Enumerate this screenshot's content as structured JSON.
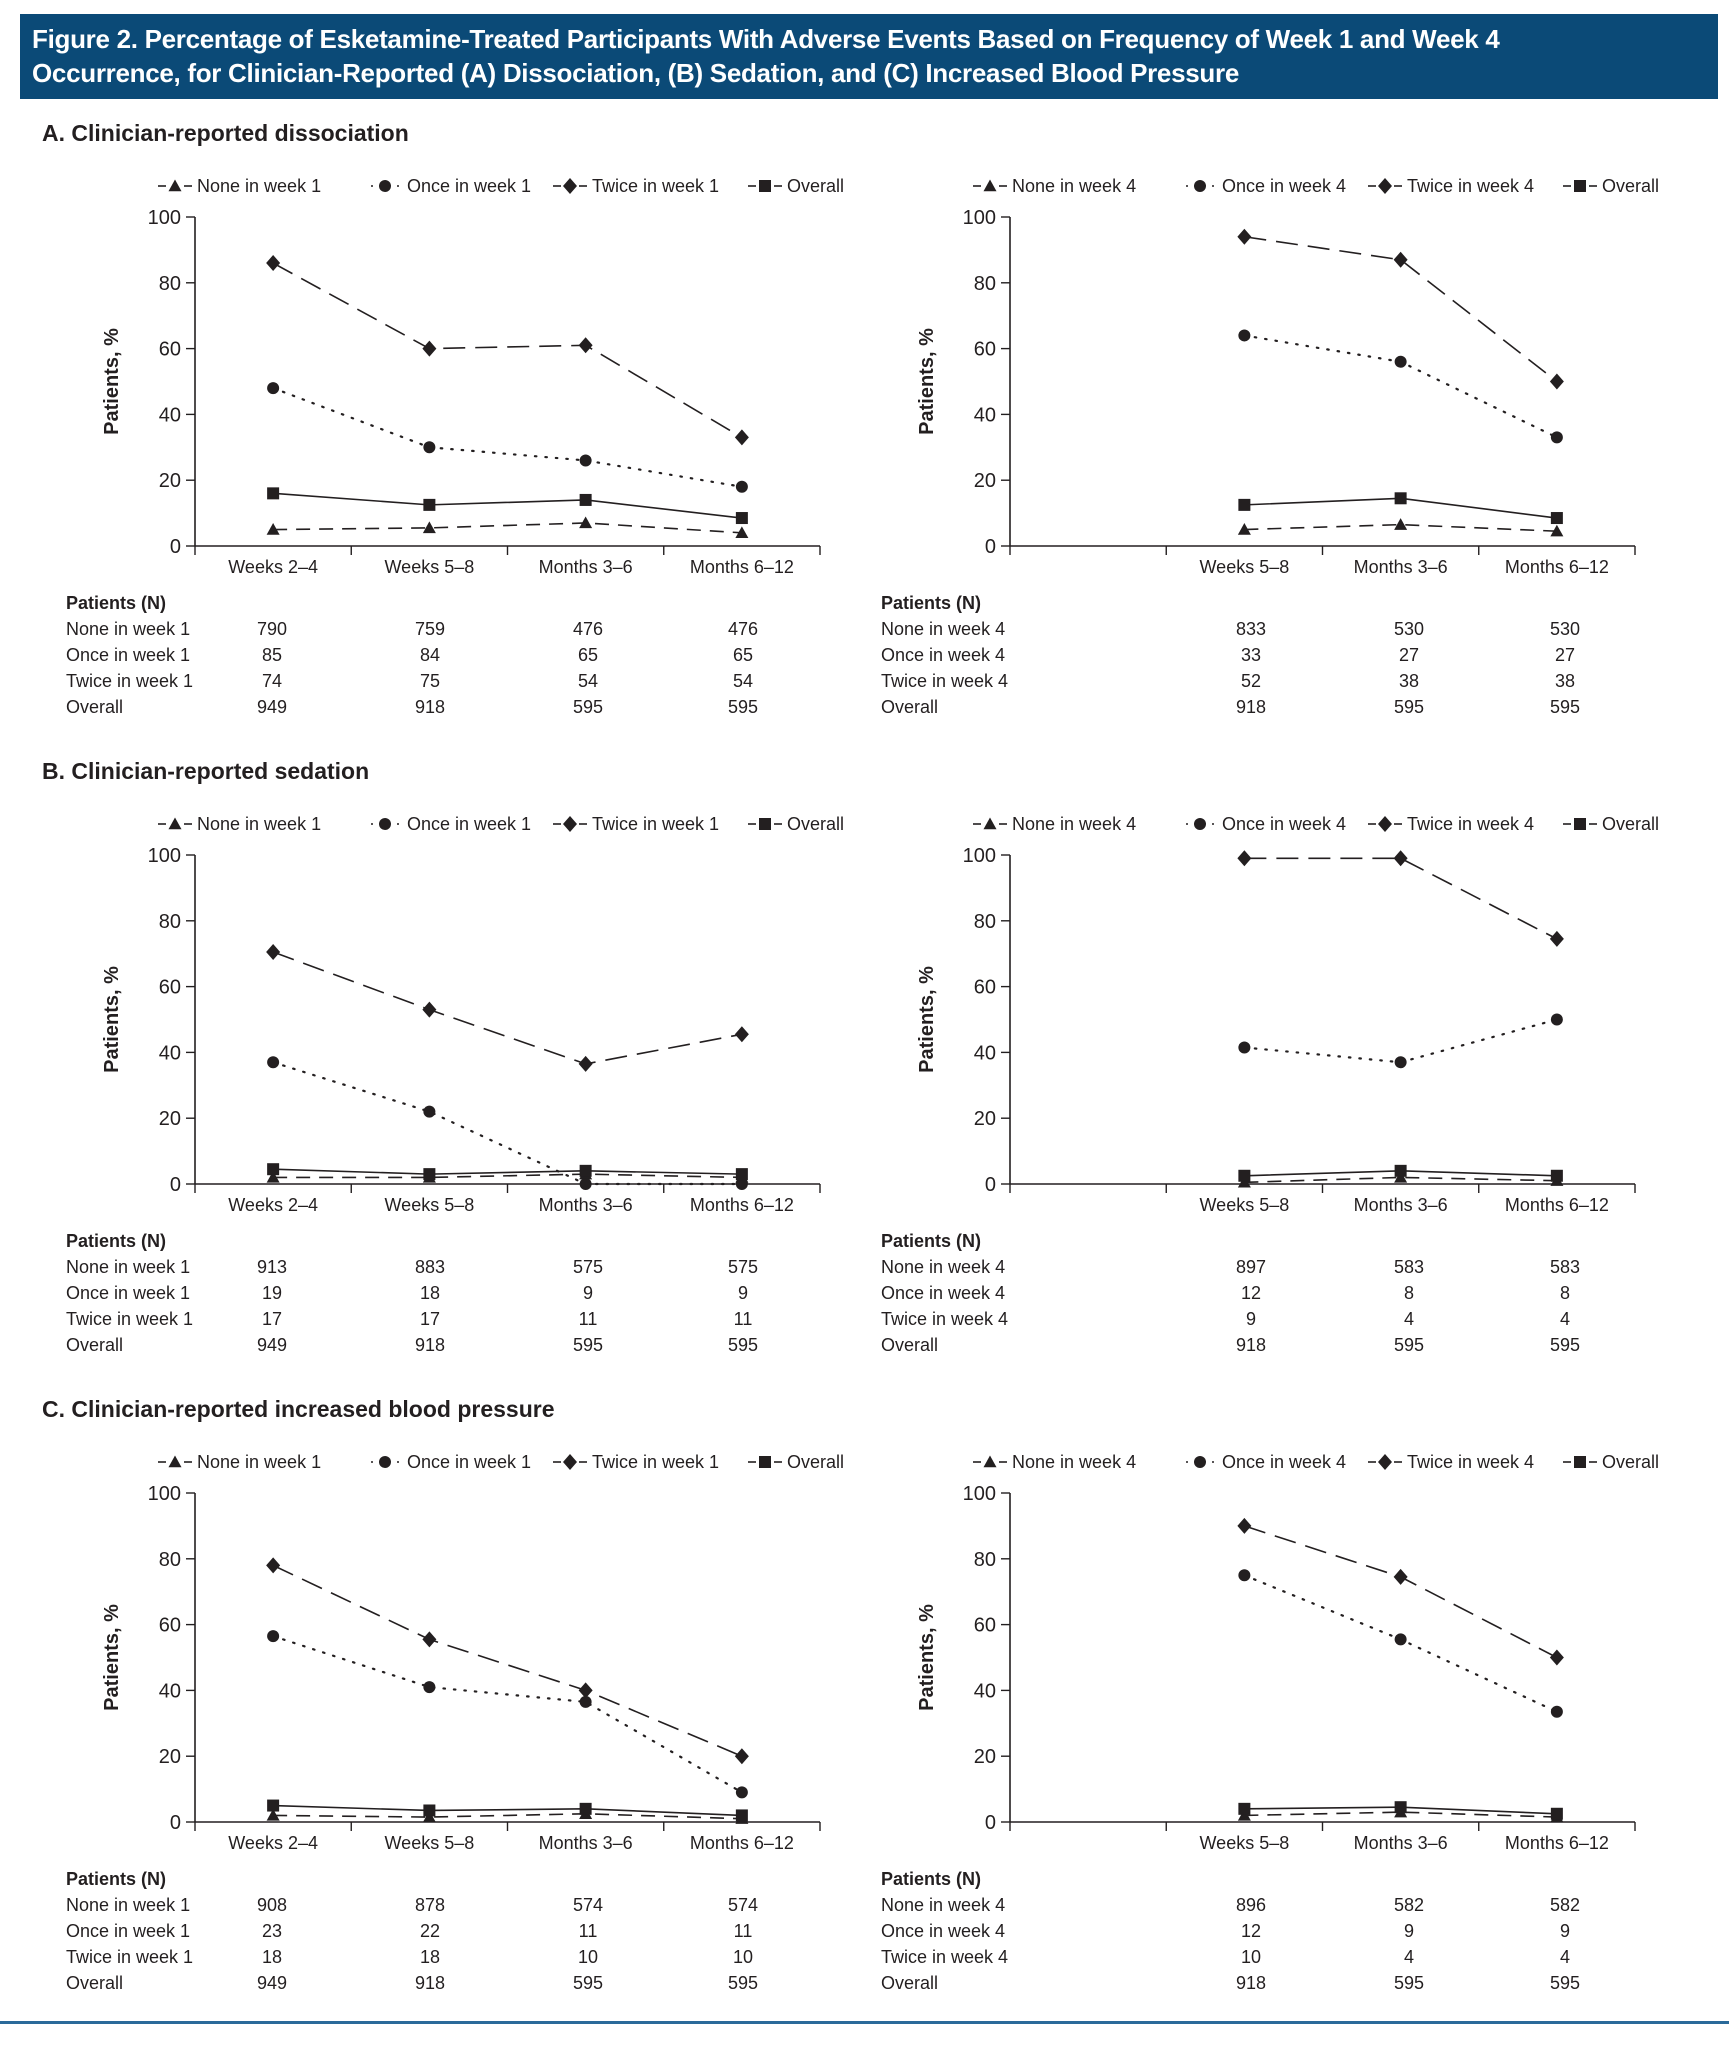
{
  "header": {
    "title_line1": "Figure 2. Percentage of Esketamine-Treated Participants With Adverse Events Based on Frequency of Week 1 and Week 4",
    "title_line2": "Occurrence, for Clinician-Reported (A) Dissociation, (B) Sedation, and (C) Increased Blood Pressure"
  },
  "colors": {
    "header_bg": "#0b4a77",
    "header_text": "#ffffff",
    "ink": "#231f20",
    "rule": "#2a6a9a"
  },
  "sections": [
    {
      "id": "A",
      "title": "A. Clinician-reported dissociation"
    },
    {
      "id": "B",
      "title": "B. Clinician-reported sedation"
    },
    {
      "id": "C",
      "title": "C. Clinician-reported increased blood pressure"
    }
  ],
  "tables": [
    {
      "heading": "Patients (N)",
      "rows": [
        {
          "label": "None in week 1",
          "values": [
            "790",
            "759",
            "476",
            "476"
          ]
        },
        {
          "label": "Once in week 1",
          "values": [
            "85",
            "84",
            "65",
            "65"
          ]
        },
        {
          "label": "Twice in week 1",
          "values": [
            "74",
            "75",
            "54",
            "54"
          ]
        },
        {
          "label": "Overall",
          "values": [
            "949",
            "918",
            "595",
            "595"
          ]
        }
      ]
    },
    {
      "heading": "Patients (N)",
      "rows": [
        {
          "label": "None in week 4",
          "values": [
            "833",
            "530",
            "530"
          ]
        },
        {
          "label": "Once in week 4",
          "values": [
            "33",
            "27",
            "27"
          ]
        },
        {
          "label": "Twice in week 4",
          "values": [
            "52",
            "38",
            "38"
          ]
        },
        {
          "label": "Overall",
          "values": [
            "918",
            "595",
            "595"
          ]
        }
      ]
    },
    {
      "heading": "Patients (N)",
      "rows": [
        {
          "label": "None in week 1",
          "values": [
            "913",
            "883",
            "575",
            "575"
          ]
        },
        {
          "label": "Once in week 1",
          "values": [
            "19",
            "18",
            "9",
            "9"
          ]
        },
        {
          "label": "Twice in week 1",
          "values": [
            "17",
            "17",
            "11",
            "11"
          ]
        },
        {
          "label": "Overall",
          "values": [
            "949",
            "918",
            "595",
            "595"
          ]
        }
      ]
    },
    {
      "heading": "Patients (N)",
      "rows": [
        {
          "label": "None in week 4",
          "values": [
            "897",
            "583",
            "583"
          ]
        },
        {
          "label": "Once in week 4",
          "values": [
            "12",
            "8",
            "8"
          ]
        },
        {
          "label": "Twice in week 4",
          "values": [
            "9",
            "4",
            "4"
          ]
        },
        {
          "label": "Overall",
          "values": [
            "918",
            "595",
            "595"
          ]
        }
      ]
    },
    {
      "heading": "Patients (N)",
      "rows": [
        {
          "label": "None in week 1",
          "values": [
            "908",
            "878",
            "574",
            "574"
          ]
        },
        {
          "label": "Once in week 1",
          "values": [
            "23",
            "22",
            "11",
            "11"
          ]
        },
        {
          "label": "Twice in week 1",
          "values": [
            "18",
            "18",
            "10",
            "10"
          ]
        },
        {
          "label": "Overall",
          "values": [
            "949",
            "918",
            "595",
            "595"
          ]
        }
      ]
    },
    {
      "heading": "Patients (N)",
      "rows": [
        {
          "label": "None in week 4",
          "values": [
            "896",
            "582",
            "582"
          ]
        },
        {
          "label": "Once in week 4",
          "values": [
            "12",
            "9",
            "9"
          ]
        },
        {
          "label": "Twice in week 4",
          "values": [
            "10",
            "4",
            "4"
          ]
        },
        {
          "label": "Overall",
          "values": [
            "918",
            "595",
            "595"
          ]
        }
      ]
    }
  ],
  "chart_data": [
    {
      "id": "A-week1",
      "type": "line",
      "title": "A. Clinician-reported dissociation",
      "xlabel": "",
      "ylabel": "Patients, %",
      "ylim": [
        0,
        100
      ],
      "yticks": [
        0,
        20,
        40,
        60,
        80,
        100
      ],
      "grid": false,
      "legend": "top",
      "categories": [
        "Weeks 2–4",
        "Weeks 5–8",
        "Months 3–6",
        "Months 6–12"
      ],
      "series": [
        {
          "name": "None in week 1",
          "marker": "triangle",
          "line": "dashed",
          "values": [
            5,
            5.5,
            7,
            4
          ]
        },
        {
          "name": "Once in week 1",
          "marker": "circle",
          "line": "dotted",
          "values": [
            48,
            30,
            26,
            18
          ]
        },
        {
          "name": "Twice in week 1",
          "marker": "diamond",
          "line": "longdash",
          "values": [
            86,
            60,
            61,
            33
          ]
        },
        {
          "name": "Overall",
          "marker": "square",
          "line": "solid",
          "values": [
            16,
            12.5,
            14,
            8.5
          ]
        }
      ]
    },
    {
      "id": "A-week4",
      "type": "line",
      "title": "A. Clinician-reported dissociation",
      "xlabel": "",
      "ylabel": "Patients, %",
      "ylim": [
        0,
        100
      ],
      "yticks": [
        0,
        20,
        40,
        60,
        80,
        100
      ],
      "grid": false,
      "legend": "top",
      "categories": [
        "",
        "Weeks 5–8",
        "Months 3–6",
        "Months 6–12"
      ],
      "series": [
        {
          "name": "None in week 4",
          "marker": "triangle",
          "line": "dashed",
          "values": [
            null,
            5,
            6.5,
            4.5
          ]
        },
        {
          "name": "Once in week 4",
          "marker": "circle",
          "line": "dotted",
          "values": [
            null,
            64,
            56,
            33
          ]
        },
        {
          "name": "Twice in week 4",
          "marker": "diamond",
          "line": "longdash",
          "values": [
            null,
            94,
            87,
            50
          ]
        },
        {
          "name": "Overall",
          "marker": "square",
          "line": "solid",
          "values": [
            null,
            12.5,
            14.5,
            8.5
          ]
        }
      ]
    },
    {
      "id": "B-week1",
      "type": "line",
      "title": "B. Clinician-reported sedation",
      "xlabel": "",
      "ylabel": "Patients, %",
      "ylim": [
        0,
        100
      ],
      "yticks": [
        0,
        20,
        40,
        60,
        80,
        100
      ],
      "grid": false,
      "legend": "top",
      "categories": [
        "Weeks 2–4",
        "Weeks 5–8",
        "Months 3–6",
        "Months 6–12"
      ],
      "series": [
        {
          "name": "None in week 1",
          "marker": "triangle",
          "line": "dashed",
          "values": [
            2,
            2,
            3,
            2
          ]
        },
        {
          "name": "Once in week 1",
          "marker": "circle",
          "line": "dotted",
          "values": [
            37,
            22,
            0,
            0
          ]
        },
        {
          "name": "Twice in week 1",
          "marker": "diamond",
          "line": "longdash",
          "values": [
            70.5,
            53,
            36.5,
            45.5
          ]
        },
        {
          "name": "Overall",
          "marker": "square",
          "line": "solid",
          "values": [
            4.5,
            3,
            4,
            3
          ]
        }
      ]
    },
    {
      "id": "B-week4",
      "type": "line",
      "title": "B. Clinician-reported sedation",
      "xlabel": "",
      "ylabel": "Patients, %",
      "ylim": [
        0,
        100
      ],
      "yticks": [
        0,
        20,
        40,
        60,
        80,
        100
      ],
      "grid": false,
      "legend": "top",
      "categories": [
        "",
        "Weeks 5–8",
        "Months 3–6",
        "Months 6–12"
      ],
      "series": [
        {
          "name": "None in week 4",
          "marker": "triangle",
          "line": "dashed",
          "values": [
            null,
            0.5,
            2,
            1
          ]
        },
        {
          "name": "Once in week 4",
          "marker": "circle",
          "line": "dotted",
          "values": [
            null,
            41.5,
            37,
            50
          ]
        },
        {
          "name": "Twice in week 4",
          "marker": "diamond",
          "line": "longdash",
          "values": [
            null,
            99,
            99,
            74.5
          ]
        },
        {
          "name": "Overall",
          "marker": "square",
          "line": "solid",
          "values": [
            null,
            2.5,
            4,
            2.5
          ]
        }
      ]
    },
    {
      "id": "C-week1",
      "type": "line",
      "title": "C. Clinician-reported increased blood pressure",
      "xlabel": "",
      "ylabel": "Patients, %",
      "ylim": [
        0,
        100
      ],
      "yticks": [
        0,
        20,
        40,
        60,
        80,
        100
      ],
      "grid": false,
      "legend": "top",
      "categories": [
        "Weeks 2–4",
        "Weeks 5–8",
        "Months 3–6",
        "Months 6–12"
      ],
      "series": [
        {
          "name": "None in week 1",
          "marker": "triangle",
          "line": "dashed",
          "values": [
            2,
            1.5,
            2.5,
            1
          ]
        },
        {
          "name": "Once in week 1",
          "marker": "circle",
          "line": "dotted",
          "values": [
            56.5,
            41,
            36.5,
            9
          ]
        },
        {
          "name": "Twice in week 1",
          "marker": "diamond",
          "line": "longdash",
          "values": [
            78,
            55.5,
            40,
            20
          ]
        },
        {
          "name": "Overall",
          "marker": "square",
          "line": "solid",
          "values": [
            5,
            3.5,
            4,
            2
          ]
        }
      ]
    },
    {
      "id": "C-week4",
      "type": "line",
      "title": "C. Clinician-reported increased blood pressure",
      "xlabel": "",
      "ylabel": "Patients, %",
      "ylim": [
        0,
        100
      ],
      "yticks": [
        0,
        20,
        40,
        60,
        80,
        100
      ],
      "grid": false,
      "legend": "top",
      "categories": [
        "",
        "Weeks 5–8",
        "Months 3–6",
        "Months 6–12"
      ],
      "series": [
        {
          "name": "None in week 4",
          "marker": "triangle",
          "line": "dashed",
          "values": [
            null,
            2,
            3,
            1.5
          ]
        },
        {
          "name": "Once in week 4",
          "marker": "circle",
          "line": "dotted",
          "values": [
            null,
            75,
            55.5,
            33.5
          ]
        },
        {
          "name": "Twice in week 4",
          "marker": "diamond",
          "line": "longdash",
          "values": [
            null,
            90,
            74.5,
            50
          ]
        },
        {
          "name": "Overall",
          "marker": "square",
          "line": "solid",
          "values": [
            null,
            4,
            4.5,
            2.5
          ]
        }
      ]
    }
  ]
}
